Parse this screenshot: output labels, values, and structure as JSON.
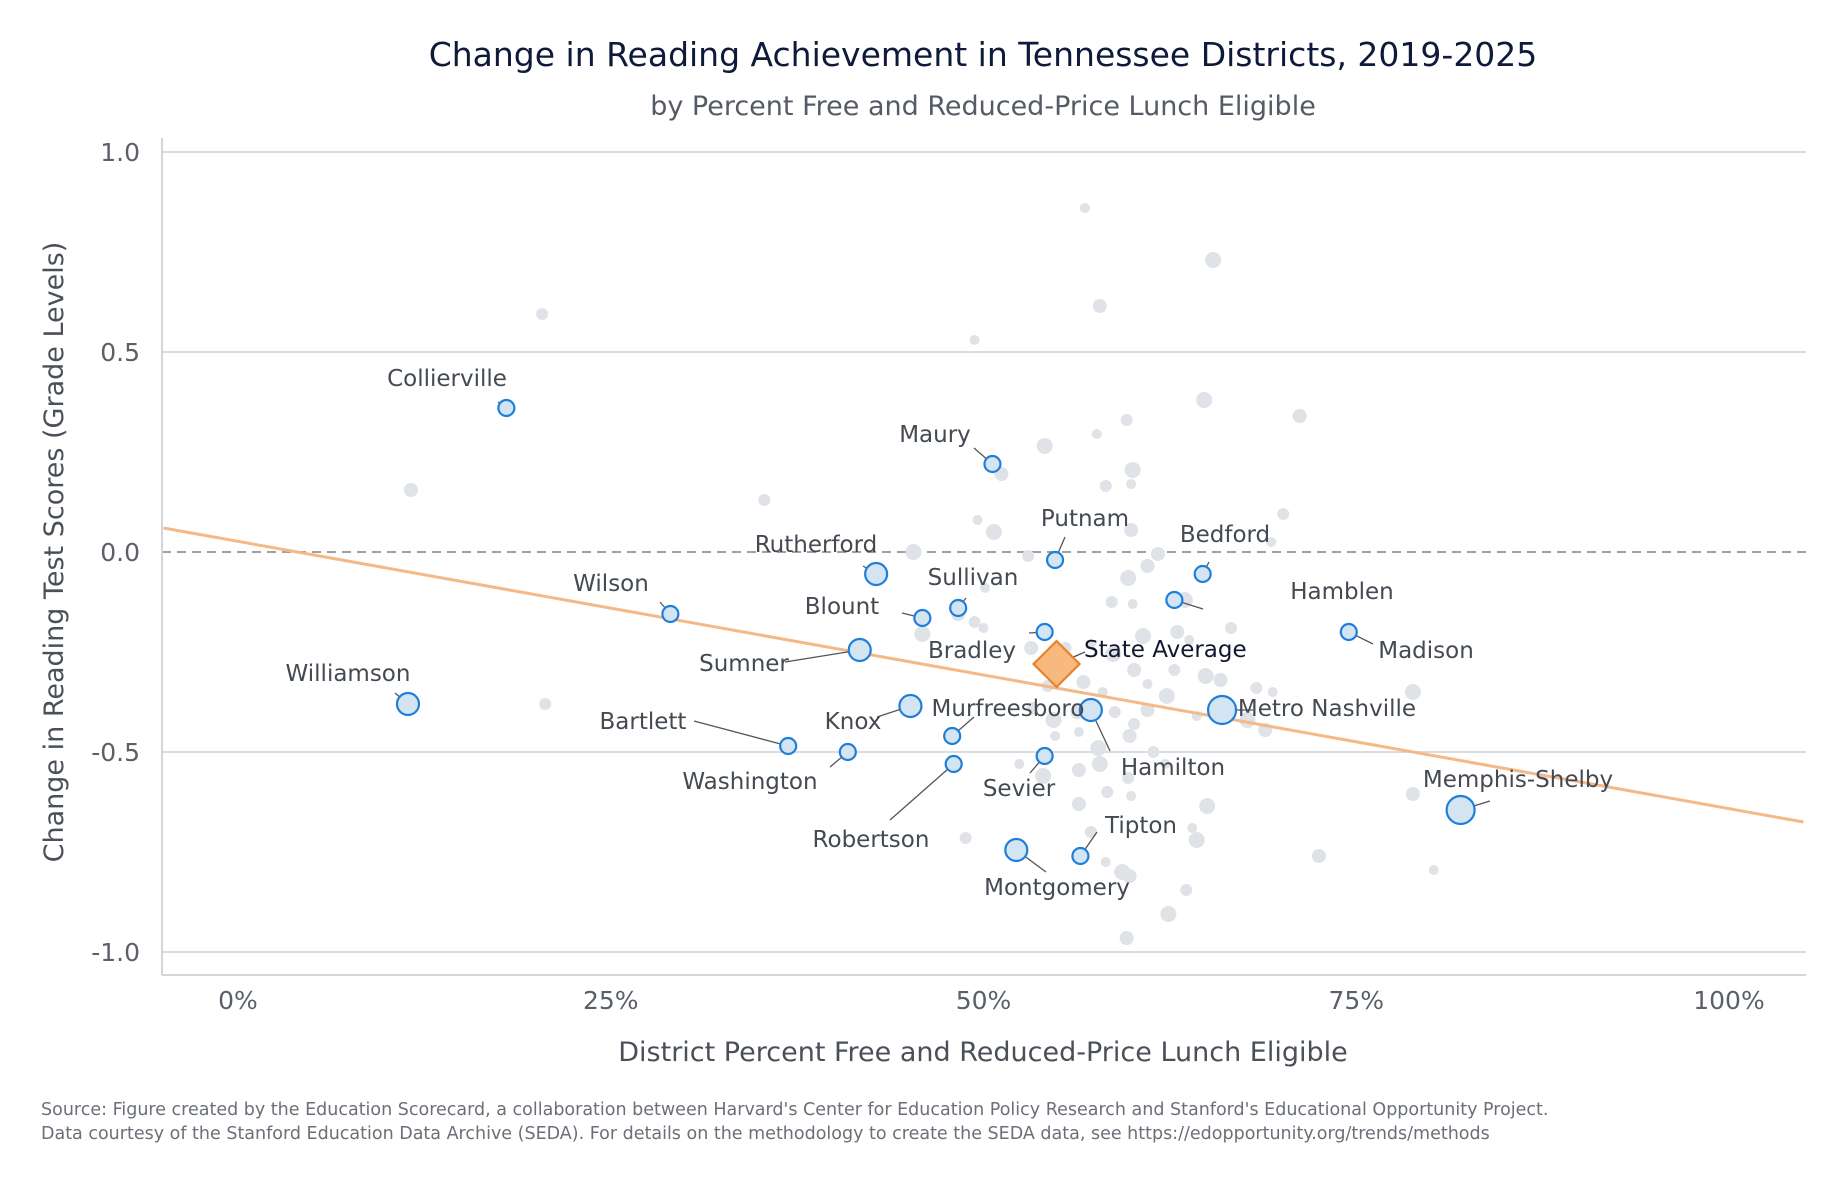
{
  "chart_data": {
    "type": "scatter",
    "title": "Change in Reading Achievement in Tennessee Districts, 2019-2025",
    "subtitle": "by Percent Free and Reduced-Price Lunch Eligible",
    "xlabel": "District Percent Free and Reduced-Price Lunch Eligible",
    "ylabel": "Change in Reading Test Scores (Grade Levels)",
    "xlim": [
      -0.05,
      1.05
    ],
    "ylim": [
      -1.06,
      1.06
    ],
    "x_ticks": [
      {
        "value": 0,
        "label": "0%"
      },
      {
        "value": 0.25,
        "label": "25%"
      },
      {
        "value": 0.5,
        "label": "50%"
      },
      {
        "value": 0.75,
        "label": "75%"
      },
      {
        "value": 1.0,
        "label": "100%"
      }
    ],
    "y_ticks": [
      {
        "value": 1.0,
        "label": "1.0"
      },
      {
        "value": 0.5,
        "label": "0.5"
      },
      {
        "value": 0.0,
        "label": "0.0"
      },
      {
        "value": -0.5,
        "label": "-0.5"
      },
      {
        "value": -1.0,
        "label": "-1.0"
      }
    ],
    "grid": "horizontal",
    "reference_line_y": 0,
    "trend_line": {
      "x": [
        -0.05,
        1.05
      ],
      "y": [
        0.06,
        -0.675
      ],
      "color": "#f5b887"
    },
    "colors": {
      "highlight_fill": "#d3e4f3",
      "highlight_stroke": "#1f7fd8",
      "background_point": "#dfe2e6",
      "state_fill": "#f7b97d",
      "state_stroke": "#e8822a",
      "grid": "#d9dce0",
      "zero_line": "#a0a0a0"
    },
    "state_average": {
      "name": "State Average",
      "x": 0.549,
      "y": -0.28
    },
    "labeled_districts": [
      {
        "name": "Collierville",
        "x": 0.18,
        "y": 0.36,
        "size": "small"
      },
      {
        "name": "Williamson",
        "x": 0.114,
        "y": -0.38,
        "size": "medium"
      },
      {
        "name": "Wilson",
        "x": 0.29,
        "y": -0.155,
        "size": "small"
      },
      {
        "name": "Rutherford",
        "x": 0.428,
        "y": -0.055,
        "size": "medium"
      },
      {
        "name": "Sumner",
        "x": 0.417,
        "y": -0.245,
        "size": "medium"
      },
      {
        "name": "Blount",
        "x": 0.459,
        "y": -0.165,
        "size": "small"
      },
      {
        "name": "Sullivan",
        "x": 0.483,
        "y": -0.14,
        "size": "small"
      },
      {
        "name": "Bartlett",
        "x": 0.369,
        "y": -0.485,
        "size": "small"
      },
      {
        "name": "Washington",
        "x": 0.409,
        "y": -0.5,
        "size": "small"
      },
      {
        "name": "Knox",
        "x": 0.451,
        "y": -0.385,
        "size": "medium"
      },
      {
        "name": "Murfreesboro",
        "x": 0.479,
        "y": -0.46,
        "size": "small"
      },
      {
        "name": "Robertson",
        "x": 0.48,
        "y": -0.53,
        "size": "small"
      },
      {
        "name": "Maury",
        "x": 0.506,
        "y": 0.22,
        "size": "small"
      },
      {
        "name": "Putnam",
        "x": 0.548,
        "y": -0.02,
        "size": "small"
      },
      {
        "name": "Bradley",
        "x": 0.541,
        "y": -0.2,
        "size": "small"
      },
      {
        "name": "Sevier",
        "x": 0.541,
        "y": -0.51,
        "size": "small"
      },
      {
        "name": "Montgomery",
        "x": 0.522,
        "y": -0.745,
        "size": "medium"
      },
      {
        "name": "Tipton",
        "x": 0.565,
        "y": -0.76,
        "size": "small"
      },
      {
        "name": "Hamilton",
        "x": 0.572,
        "y": -0.395,
        "size": "medium"
      },
      {
        "name": "Bedford",
        "x": 0.647,
        "y": -0.055,
        "size": "small"
      },
      {
        "name": "Hamblen",
        "x": 0.628,
        "y": -0.12,
        "size": "small"
      },
      {
        "name": "Metro Nashville",
        "x": 0.66,
        "y": -0.395,
        "size": "large"
      },
      {
        "name": "Madison",
        "x": 0.745,
        "y": -0.2,
        "size": "small"
      },
      {
        "name": "Memphis-Shelby",
        "x": 0.82,
        "y": -0.645,
        "size": "large"
      }
    ],
    "other_districts": [
      [
        0.568,
        0.86
      ],
      [
        0.654,
        0.73
      ],
      [
        0.578,
        0.615
      ],
      [
        0.204,
        0.595
      ],
      [
        0.494,
        0.53
      ],
      [
        0.648,
        0.38
      ],
      [
        0.712,
        0.34
      ],
      [
        0.596,
        0.33
      ],
      [
        0.576,
        0.295
      ],
      [
        0.541,
        0.265
      ],
      [
        0.512,
        0.195
      ],
      [
        0.582,
        0.165
      ],
      [
        0.599,
        0.17
      ],
      [
        0.6,
        0.205
      ],
      [
        0.116,
        0.155
      ],
      [
        0.353,
        0.13
      ],
      [
        0.496,
        0.08
      ],
      [
        0.507,
        0.05
      ],
      [
        0.599,
        0.055
      ],
      [
        0.701,
        0.095
      ],
      [
        0.693,
        0.025
      ],
      [
        0.453,
        0.0
      ],
      [
        0.617,
        -0.005
      ],
      [
        0.53,
        -0.01
      ],
      [
        0.501,
        -0.09
      ],
      [
        0.597,
        -0.065
      ],
      [
        0.61,
        -0.035
      ],
      [
        0.586,
        -0.125
      ],
      [
        0.6,
        -0.13
      ],
      [
        0.635,
        -0.12
      ],
      [
        0.483,
        -0.155
      ],
      [
        0.494,
        -0.175
      ],
      [
        0.5,
        -0.19
      ],
      [
        0.459,
        -0.205
      ],
      [
        0.532,
        -0.24
      ],
      [
        0.555,
        -0.24
      ],
      [
        0.572,
        -0.23
      ],
      [
        0.607,
        -0.21
      ],
      [
        0.63,
        -0.2
      ],
      [
        0.666,
        -0.19
      ],
      [
        0.638,
        -0.22
      ],
      [
        0.587,
        -0.255
      ],
      [
        0.601,
        -0.295
      ],
      [
        0.628,
        -0.295
      ],
      [
        0.61,
        -0.33
      ],
      [
        0.623,
        -0.36
      ],
      [
        0.567,
        -0.325
      ],
      [
        0.543,
        -0.335
      ],
      [
        0.58,
        -0.35
      ],
      [
        0.649,
        -0.31
      ],
      [
        0.659,
        -0.32
      ],
      [
        0.683,
        -0.34
      ],
      [
        0.694,
        -0.35
      ],
      [
        0.788,
        -0.35
      ],
      [
        0.61,
        -0.395
      ],
      [
        0.601,
        -0.43
      ],
      [
        0.564,
        -0.45
      ],
      [
        0.547,
        -0.42
      ],
      [
        0.563,
        -0.4
      ],
      [
        0.588,
        -0.4
      ],
      [
        0.643,
        -0.41
      ],
      [
        0.677,
        -0.42
      ],
      [
        0.689,
        -0.445
      ],
      [
        0.533,
        -0.39
      ],
      [
        0.548,
        -0.46
      ],
      [
        0.577,
        -0.49
      ],
      [
        0.598,
        -0.46
      ],
      [
        0.614,
        -0.5
      ],
      [
        0.622,
        -0.53
      ],
      [
        0.578,
        -0.53
      ],
      [
        0.564,
        -0.545
      ],
      [
        0.597,
        -0.565
      ],
      [
        0.524,
        -0.53
      ],
      [
        0.54,
        -0.56
      ],
      [
        0.564,
        -0.63
      ],
      [
        0.583,
        -0.6
      ],
      [
        0.599,
        -0.61
      ],
      [
        0.65,
        -0.635
      ],
      [
        0.788,
        -0.605
      ],
      [
        0.572,
        -0.7
      ],
      [
        0.64,
        -0.69
      ],
      [
        0.643,
        -0.72
      ],
      [
        0.725,
        -0.76
      ],
      [
        0.488,
        -0.715
      ],
      [
        0.582,
        -0.775
      ],
      [
        0.593,
        -0.8
      ],
      [
        0.598,
        -0.81
      ],
      [
        0.636,
        -0.845
      ],
      [
        0.802,
        -0.795
      ],
      [
        0.624,
        -0.905
      ],
      [
        0.596,
        -0.965
      ],
      [
        0.206,
        -0.38
      ]
    ]
  },
  "source_line1": "Source: Figure created by the Education Scorecard, a collaboration between Harvard's Center for Education Policy Research and Stanford's Educational Opportunity Project.",
  "source_line2": "Data courtesy of the Stanford Education Data Archive (SEDA). For details on the methodology to create the SEDA data, see https://edopportunity.org/trends/methods"
}
